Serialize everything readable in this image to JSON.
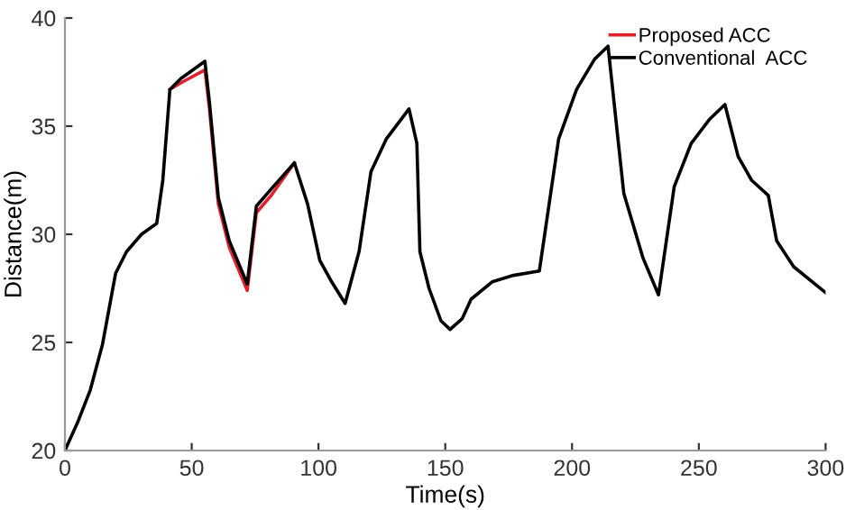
{
  "chart_data": {
    "type": "line",
    "xlabel": "Time(s)",
    "ylabel": "Distance(m)",
    "xlim": [
      0,
      300
    ],
    "ylim": [
      20,
      40
    ],
    "xticks": [
      0,
      50,
      100,
      150,
      200,
      250,
      300
    ],
    "yticks": [
      20,
      25,
      30,
      35,
      40
    ],
    "x": [
      0,
      5,
      10,
      14.8,
      20,
      24.3,
      30.2,
      36.2,
      38.6,
      41.4,
      45.7,
      55.2,
      57,
      60.5,
      64.8,
      71.9,
      75.5,
      81.4,
      90.5,
      95.7,
      100.5,
      105.2,
      110.5,
      116,
      120.7,
      126.7,
      135.7,
      138.8,
      140,
      143.6,
      148.3,
      151.9,
      156.7,
      160.2,
      168.5,
      176.9,
      187.1,
      194.7,
      201.8,
      208.9,
      214.2,
      220.4,
      228,
      234.1,
      240.3,
      247,
      254.1,
      260.3,
      265.5,
      270.8,
      277.4,
      280.7,
      287.4,
      300
    ],
    "series": [
      {
        "name": "Proposed ACC",
        "color": "#e0202a",
        "values": [
          null,
          null,
          null,
          null,
          null,
          null,
          null,
          null,
          null,
          36.7,
          37.0,
          37.6,
          35.8,
          31.4,
          29.4,
          27.4,
          31.0,
          31.8,
          33.3,
          null,
          null,
          null,
          null,
          null,
          null,
          null,
          null,
          null,
          null,
          null,
          null,
          null,
          null,
          null,
          null,
          null,
          null,
          null,
          null,
          null,
          null,
          null,
          null,
          null,
          null,
          null,
          null,
          null,
          null,
          null,
          null,
          null,
          null,
          null
        ]
      },
      {
        "name": "Conventional  ACC",
        "color": "#000000",
        "values": [
          20,
          21.3,
          22.8,
          24.9,
          28.2,
          29.2,
          30.0,
          30.5,
          32.5,
          36.7,
          37.2,
          38.0,
          36.1,
          31.7,
          29.7,
          27.7,
          31.3,
          32.1,
          33.3,
          31.4,
          28.8,
          27.8,
          26.8,
          29.2,
          32.9,
          34.4,
          35.8,
          34.2,
          29.2,
          27.5,
          26.0,
          25.6,
          26.1,
          27.0,
          27.8,
          28.1,
          28.3,
          34.4,
          36.7,
          38.1,
          38.7,
          31.9,
          28.9,
          27.2,
          32.2,
          34.2,
          35.3,
          36.0,
          33.6,
          32.5,
          31.8,
          29.7,
          28.5,
          27.3
        ]
      }
    ],
    "legend": "top right",
    "grid": false,
    "marker": "none",
    "line_style": "solid"
  }
}
